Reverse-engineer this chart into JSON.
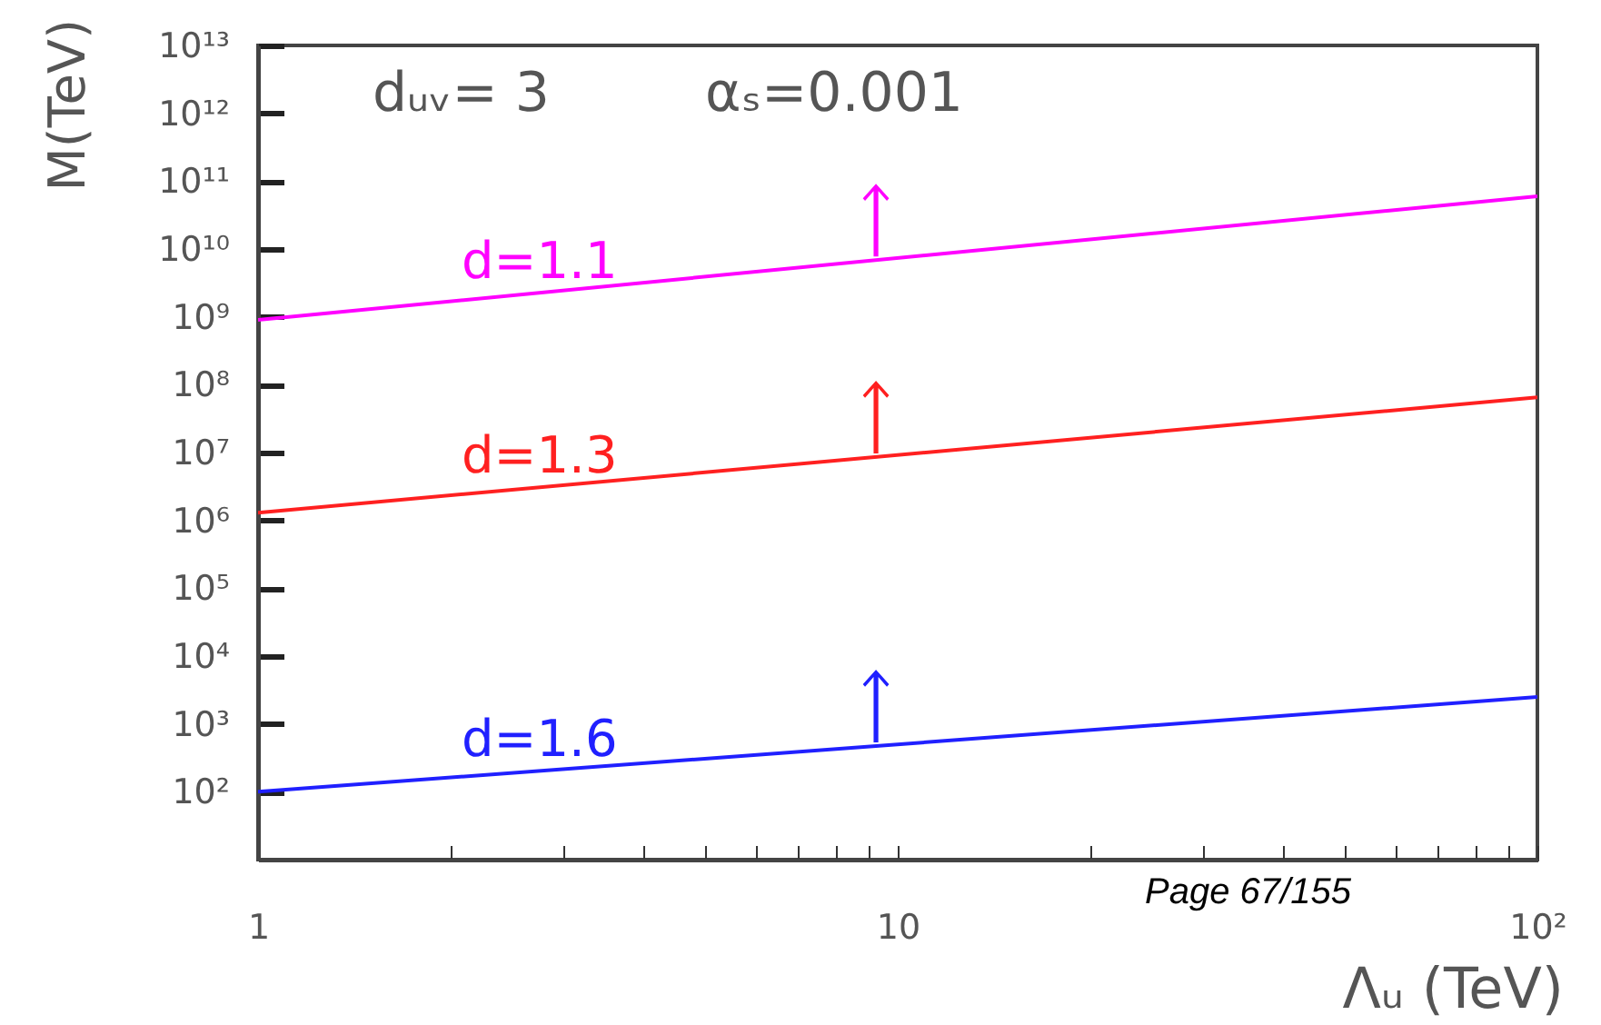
{
  "chart_data": {
    "type": "line",
    "xlabel": "Λᵤ (TeV)",
    "ylabel": "M(TeV)",
    "log": "xy",
    "x": [
      1,
      100
    ],
    "series": [
      {
        "name": "d=1.1",
        "color": "#ff00ff",
        "values": [
          900000000,
          60000000000
        ]
      },
      {
        "name": "d=1.3",
        "color": "#ff2020",
        "values": [
          1300000,
          65000000
        ]
      },
      {
        "name": "d=1.6",
        "color": "#2020ff",
        "values": [
          100,
          2500
        ]
      }
    ],
    "xlim": [
      1,
      100
    ],
    "xticks": [
      1,
      {
        "value": 2,
        "label": null
      },
      {
        "value": 3,
        "label": null
      },
      {
        "value": 4,
        "label": null
      },
      {
        "value": 5,
        "label": null
      },
      {
        "value": 6,
        "label": null
      },
      {
        "value": 7,
        "label": null
      },
      {
        "value": 8,
        "label": null
      },
      {
        "value": 9,
        "label": null
      },
      10,
      {
        "value": 20,
        "label": null
      },
      {
        "value": 30,
        "label": null
      },
      {
        "value": 40,
        "label": null
      },
      {
        "value": 50,
        "label": null
      },
      {
        "value": 60,
        "label": null
      },
      {
        "value": 70,
        "label": null
      },
      {
        "value": 80,
        "label": null
      },
      {
        "value": 90,
        "label": null
      },
      {
        "value": 100,
        "label": "10²"
      }
    ],
    "ylim": [
      10,
      10000000000000
    ],
    "yticks": [
      {
        "value": 100,
        "label": "10²"
      },
      {
        "value": 1000,
        "label": "10³"
      },
      {
        "value": 10000,
        "label": "10⁴"
      },
      {
        "value": 100000,
        "label": "10⁵"
      },
      {
        "value": 1000000,
        "label": "10⁶"
      },
      {
        "value": 10000000,
        "label": "10⁷"
      },
      {
        "value": 100000000,
        "label": "10⁸"
      },
      {
        "value": 1000000000,
        "label": "10⁹"
      },
      {
        "value": 10000000000,
        "label": "10¹⁰"
      },
      {
        "value": 100000000000,
        "label": "10¹¹"
      },
      {
        "value": 1000000000000,
        "label": "10¹²"
      },
      {
        "value": 10000000000000,
        "label": "10¹³"
      }
    ],
    "annotations": [
      "dᵤᵥ= 3",
      "αₛ=0.001",
      "Page 67/155"
    ]
  }
}
